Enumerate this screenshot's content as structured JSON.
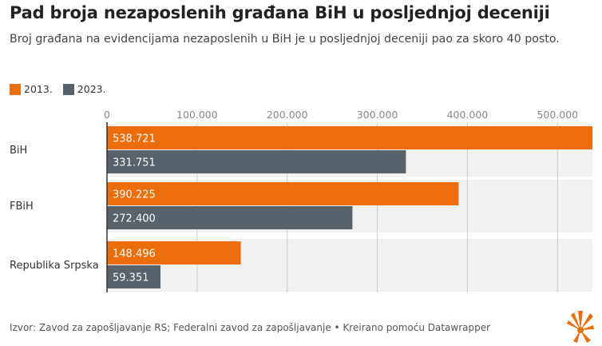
{
  "title": "Pad broja nezaposlenih građana BiH u posljednjoj deceniji",
  "subtitle": "Broj građana na evidencijama nezaposlenih u BiH je u posljednjoj deceniji pao za skoro 40 posto.",
  "footer": "Izvor: Zavod za zapošljavanje RS; Federalni zavod za zapošljavanje • Kreirano pomoću Datawrapper",
  "colors": {
    "series_2013": "#ec6d0b",
    "series_2023": "#57626b",
    "band": "#f1f1f1",
    "grid": "#cccccc"
  },
  "logo_icon": "rfe-rl-sunburst-logo-icon",
  "chart_data": {
    "type": "bar",
    "orientation": "horizontal",
    "grid": true,
    "legend_position": "top-left",
    "categories": [
      "BiH",
      "FBiH",
      "Republika Srpska"
    ],
    "series": [
      {
        "name": "2013.",
        "values": [
          538721,
          390225,
          148496
        ],
        "labels": [
          "538.721",
          "390.225",
          "148.496"
        ]
      },
      {
        "name": "2023.",
        "values": [
          331751,
          272400,
          59351
        ],
        "labels": [
          "331.751",
          "272.400",
          "59.351"
        ]
      }
    ],
    "xlim": [
      0,
      538721
    ],
    "ticks": [
      0,
      100000,
      200000,
      300000,
      400000,
      500000
    ],
    "tick_labels": [
      "0",
      "100.000",
      "200.000",
      "300.000",
      "400.000",
      "500.000"
    ],
    "title": "Pad broja nezaposlenih građana BiH u posljednjoj deceniji",
    "xlabel": "",
    "ylabel": ""
  }
}
